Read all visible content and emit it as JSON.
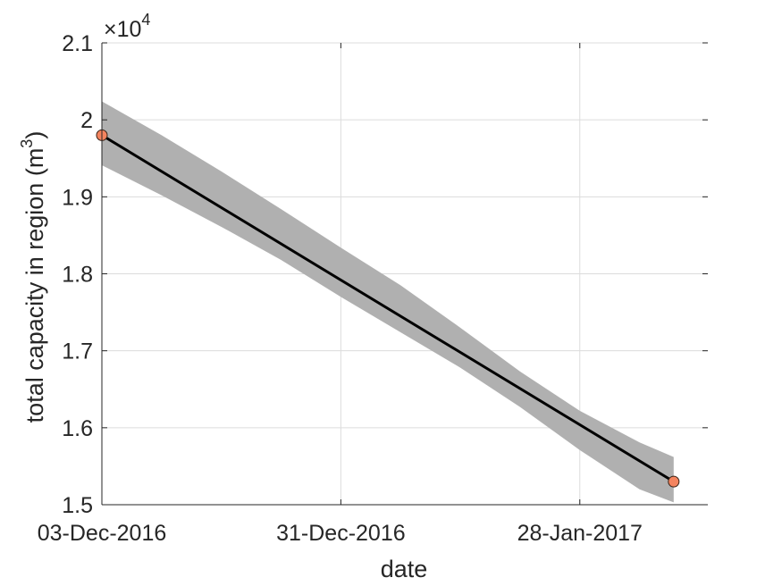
{
  "chart_data": {
    "type": "line",
    "title": "",
    "xlabel": "date",
    "ylabel": "total capacity in region (m",
    "ylabel_superscript": "3",
    "ylabel_suffix": ")",
    "y_exponent_label": {
      "base": "×10",
      "exp": "4"
    },
    "xlim": [
      "2016-12-03",
      "2017-02-12"
    ],
    "ylim": [
      15000,
      21000
    ],
    "x_ticks": [
      "03-Dec-2016",
      "31-Dec-2016",
      "28-Jan-2017"
    ],
    "y_ticks": [
      {
        "value": 15000,
        "label": "1.5"
      },
      {
        "value": 16000,
        "label": "1.6"
      },
      {
        "value": 17000,
        "label": "1.7"
      },
      {
        "value": 18000,
        "label": "1.8"
      },
      {
        "value": 19000,
        "label": "1.9"
      },
      {
        "value": 20000,
        "label": "2"
      },
      {
        "value": 21000,
        "label": "2.1"
      }
    ],
    "grid": true,
    "series": [
      {
        "style": "line",
        "color": "#000000",
        "x": [
          "2016-12-03",
          "2017-02-08"
        ],
        "y": [
          19800,
          15300
        ]
      },
      {
        "style": "band",
        "color": "#b0b0b0",
        "x": [
          "2016-12-03",
          "2016-12-10",
          "2016-12-17",
          "2016-12-24",
          "2016-12-31",
          "2017-01-07",
          "2017-01-14",
          "2017-01-21",
          "2017-01-28",
          "2017-02-04",
          "2017-02-08"
        ],
        "upper": [
          20240,
          19800,
          19330,
          18840,
          18340,
          17850,
          17300,
          16730,
          16220,
          15810,
          15620
        ],
        "lower": [
          19410,
          19020,
          18610,
          18180,
          17700,
          17240,
          16780,
          16270,
          15710,
          15200,
          15030
        ]
      },
      {
        "style": "markers",
        "color": "#f4845f",
        "x": [
          "2016-12-03",
          "2017-02-08"
        ],
        "y": [
          19800,
          15300
        ]
      }
    ]
  }
}
